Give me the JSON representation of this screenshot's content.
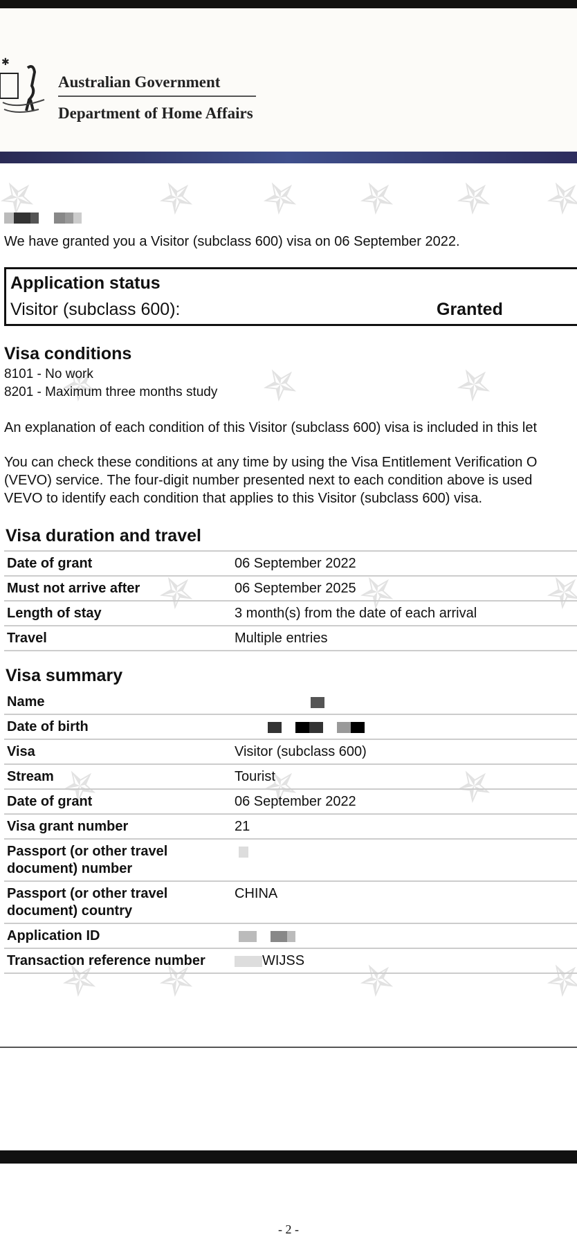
{
  "header": {
    "line1": "Australian Government",
    "line2": "Department of Home Affairs",
    "band_color": "#3f4f8c"
  },
  "intro": "We have granted you a Visitor (subclass 600) visa on 06 September 2022.",
  "status": {
    "title": "Application status",
    "visa": "Visitor (subclass 600):",
    "value": "Granted"
  },
  "conditions": {
    "title": "Visa conditions",
    "items": [
      "8101 - No work",
      "8201 - Maximum three months study"
    ],
    "para1": "An explanation of each condition of this Visitor (subclass 600) visa is included in this let",
    "para2": [
      "You can check these conditions at any time by using the Visa Entitlement Verification O",
      "(VEVO) service. The four-digit number presented next to each condition above is used",
      "VEVO to identify each condition that applies to this Visitor (subclass 600) visa."
    ]
  },
  "duration": {
    "title": "Visa duration and travel",
    "rows": [
      {
        "k": "Date of grant",
        "v": "06 September 2022"
      },
      {
        "k": "Must not arrive after",
        "v": "06 September 2025"
      },
      {
        "k": "Length of stay",
        "v": "3 month(s) from the date of each arrival"
      },
      {
        "k": "Travel",
        "v": "Multiple entries"
      }
    ]
  },
  "summary": {
    "title": "Visa summary",
    "rows": [
      {
        "k": "Name",
        "v": ""
      },
      {
        "k": "Date of birth",
        "v": ""
      },
      {
        "k": "Visa",
        "v": "Visitor (subclass 600)"
      },
      {
        "k": "Stream",
        "v": "Tourist"
      },
      {
        "k": "Date of grant",
        "v": "06 September 2022"
      },
      {
        "k": "Visa grant number",
        "v": "21"
      },
      {
        "k": "Passport (or other travel document) number",
        "v": ""
      },
      {
        "k": "Passport (or other travel document) country",
        "v": "CHINA"
      },
      {
        "k": "Application ID",
        "v": ""
      },
      {
        "k": "Transaction reference number",
        "v": "WIJSS"
      }
    ]
  },
  "page_number": "- 2 -"
}
